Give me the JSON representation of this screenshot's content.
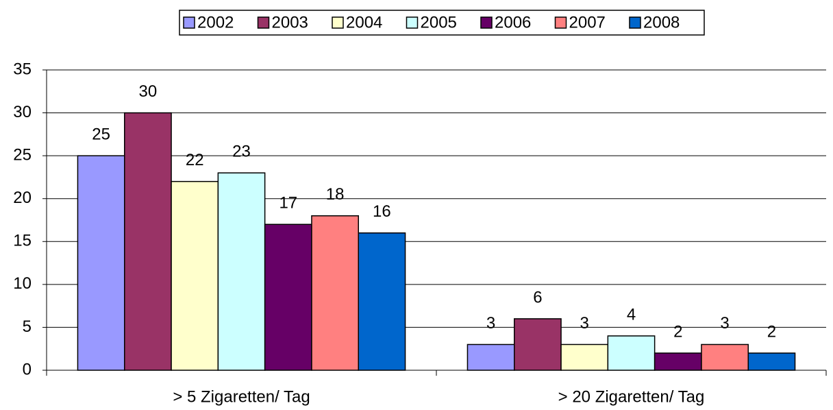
{
  "chart_data": {
    "type": "bar",
    "categories": [
      "> 5 Zigaretten/ Tag",
      "> 20 Zigaretten/ Tag"
    ],
    "series": [
      {
        "name": "2002",
        "color": "#9999ff",
        "values": [
          25,
          3
        ]
      },
      {
        "name": "2003",
        "color": "#993366",
        "values": [
          30,
          6
        ]
      },
      {
        "name": "2004",
        "color": "#ffffcc",
        "values": [
          22,
          3
        ]
      },
      {
        "name": "2005",
        "color": "#ccffff",
        "values": [
          23,
          4
        ]
      },
      {
        "name": "2006",
        "color": "#660066",
        "values": [
          17,
          2
        ]
      },
      {
        "name": "2007",
        "color": "#ff8080",
        "values": [
          18,
          3
        ]
      },
      {
        "name": "2008",
        "color": "#0066cc",
        "values": [
          16,
          2
        ]
      }
    ],
    "ylim": [
      0,
      35
    ],
    "yticks": [
      0,
      5,
      10,
      15,
      20,
      25,
      30,
      35
    ],
    "grid": true,
    "legend": "top"
  }
}
